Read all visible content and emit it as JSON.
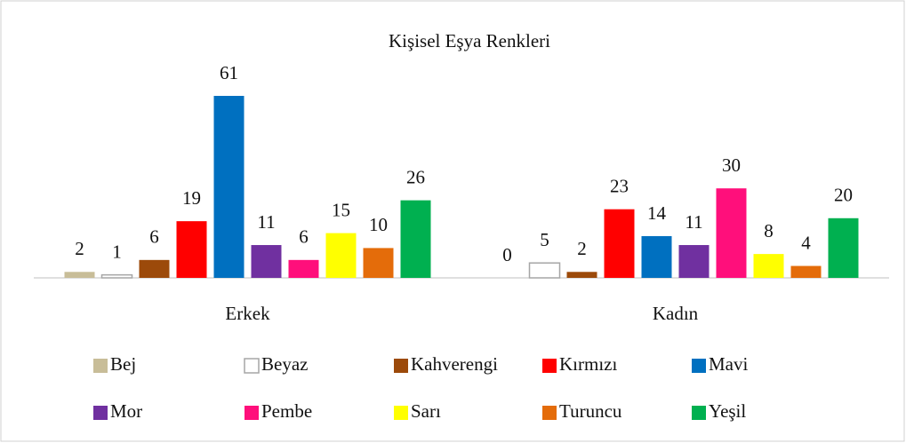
{
  "chart_data": {
    "type": "bar",
    "title": "Kişisel Eşya Renkleri",
    "categories": [
      "Erkek",
      "Kadın"
    ],
    "series": [
      {
        "name": "Bej",
        "color": "#c8bd98",
        "values": [
          2,
          0
        ]
      },
      {
        "name": "Beyaz",
        "color": "#ffffff",
        "values": [
          1,
          5
        ]
      },
      {
        "name": "Kahverengi",
        "color": "#9c4a0a",
        "values": [
          6,
          2
        ]
      },
      {
        "name": "Kırmızı",
        "color": "#ff0000",
        "values": [
          19,
          23
        ]
      },
      {
        "name": "Mavi",
        "color": "#0070c0",
        "values": [
          61,
          14
        ]
      },
      {
        "name": "Mor",
        "color": "#7030a0",
        "values": [
          11,
          11
        ]
      },
      {
        "name": "Pembe",
        "color": "#ff0f7b",
        "values": [
          6,
          30
        ]
      },
      {
        "name": "Sarı",
        "color": "#ffff00",
        "values": [
          15,
          8
        ]
      },
      {
        "name": "Turuncu",
        "color": "#e46c0a",
        "values": [
          10,
          4
        ]
      },
      {
        "name": "Yeşil",
        "color": "#00b050",
        "values": [
          26,
          20
        ]
      }
    ]
  }
}
